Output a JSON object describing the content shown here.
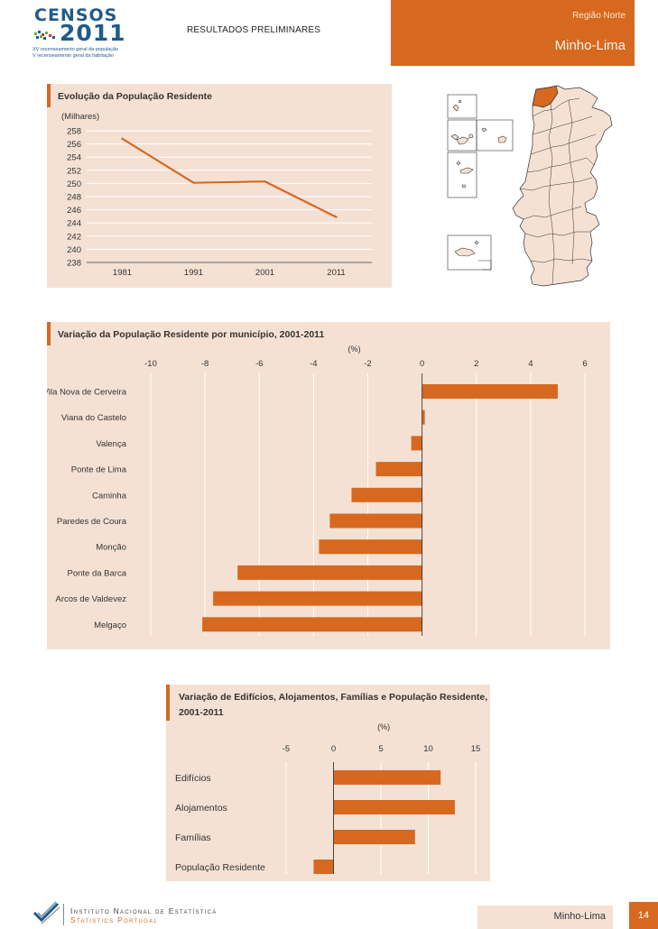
{
  "header": {
    "logo_title": "CENSOS",
    "logo_year": "2011",
    "logo_line1": "XV recenseamento geral da população",
    "logo_line2": "V recenseamento geral da habitação",
    "document_title": "RESULTADOS PRELIMINARES",
    "region": "Região Norte",
    "subregion": "Minho-Lima"
  },
  "chart_data": [
    {
      "type": "line",
      "title": "Evolução da População Residente",
      "ylabel": "(Milhares)",
      "categories": [
        "1981",
        "1991",
        "2001",
        "2011"
      ],
      "values": [
        256.8,
        250.1,
        250.3,
        244.9
      ],
      "ylim": [
        238,
        258
      ],
      "yticks": [
        258,
        256,
        254,
        252,
        250,
        248,
        246,
        244,
        242,
        240,
        238
      ],
      "grid": true,
      "color": "#d6691f"
    },
    {
      "type": "bar",
      "orientation": "horizontal",
      "title": "Variação da População Residente por município, 2001-2011",
      "unit_label": "(%)",
      "categories": [
        "Vila Nova de Cerveira",
        "Viana do Castelo",
        "Valença",
        "Ponte de Lima",
        "Caminha",
        "Paredes de Coura",
        "Monção",
        "Ponte da Barca",
        "Arcos de Valdevez",
        "Melgaço"
      ],
      "values": [
        5.0,
        0.1,
        -0.4,
        -1.7,
        -2.6,
        -3.4,
        -3.8,
        -6.8,
        -7.7,
        -8.1
      ],
      "xlim": [
        -10,
        6
      ],
      "xticks": [
        -10,
        -8,
        -6,
        -4,
        -2,
        0,
        2,
        4,
        6
      ],
      "grid": true,
      "color": "#d6691f"
    },
    {
      "type": "bar",
      "orientation": "horizontal",
      "title_line1": "Variação de Edifícios, Alojamentos, Famílias e População Residente,",
      "title_line2": "2001-2011",
      "unit_label": "(%)",
      "categories": [
        "Edifícios",
        "Alojamentos",
        "Famílias",
        "População Residente"
      ],
      "values": [
        11.3,
        12.8,
        8.6,
        -2.1
      ],
      "xlim": [
        -5,
        15
      ],
      "xticks": [
        -5,
        0,
        5,
        10,
        15
      ],
      "grid": true,
      "color": "#d6691f"
    }
  ],
  "map": {
    "highlight_color": "#d6691f",
    "base_color": "#f5e1d4"
  },
  "footer": {
    "org_line1": "Instituto Nacional de Estatística",
    "org_line2": "Statistics Portugal",
    "region": "Minho-Lima",
    "page": "14"
  }
}
